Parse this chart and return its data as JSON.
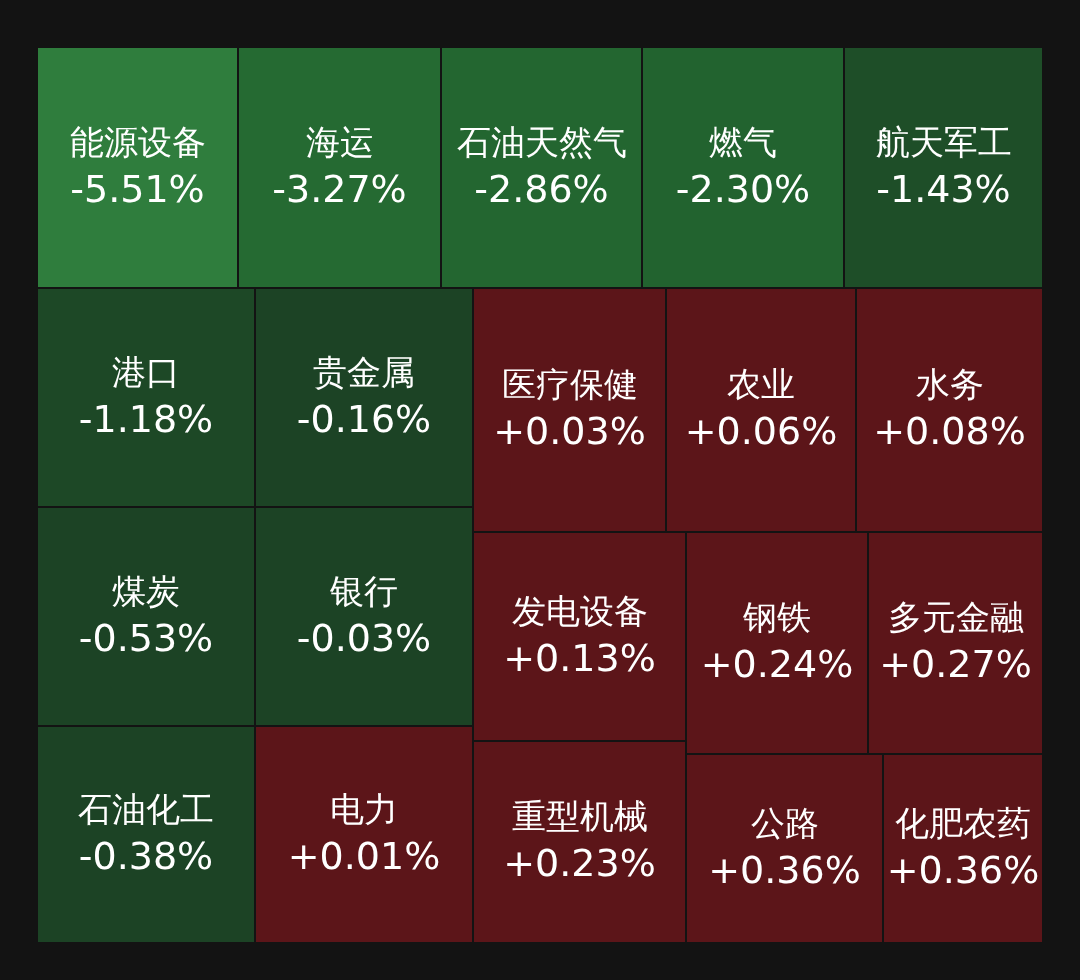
{
  "chart_data": {
    "type": "other",
    "categories": [
      "能源设备",
      "海运",
      "石油天然气",
      "燃气",
      "航天军工",
      "港口",
      "贵金属",
      "煤炭",
      "银行",
      "石油化工",
      "电力",
      "医疗保健",
      "农业",
      "水务",
      "发电设备",
      "重型机械",
      "钢铁",
      "多元金融",
      "公路",
      "化肥农药"
    ],
    "values": [
      -5.51,
      -3.27,
      -2.86,
      -2.3,
      -1.43,
      -1.18,
      -0.16,
      -0.53,
      -0.03,
      -0.38,
      0.01,
      0.03,
      0.06,
      0.08,
      0.13,
      0.23,
      0.24,
      0.27,
      0.36,
      0.36
    ],
    "value_labels": [
      "-5.51%",
      "-3.27%",
      "-2.86%",
      "-2.30%",
      "-1.43%",
      "-1.18%",
      "-0.16%",
      "-0.53%",
      "-0.03%",
      "-0.38%",
      "+0.01%",
      "+0.03%",
      "+0.06%",
      "+0.08%",
      "+0.13%",
      "+0.23%",
      "+0.24%",
      "+0.27%",
      "+0.36%",
      "+0.36%"
    ],
    "colors": [
      "#2f7d3d",
      "#256a32",
      "#236630",
      "#22632f",
      "#1e4e28",
      "#1d4826",
      "#1c4325",
      "#1c4325",
      "#1c4325",
      "#1c4325",
      "#5c1519",
      "#5c1519",
      "#5c1519",
      "#5c1519",
      "#5c1519",
      "#5c1519",
      "#5c1519",
      "#5c1519",
      "#5c1519",
      "#5c1519"
    ]
  }
}
